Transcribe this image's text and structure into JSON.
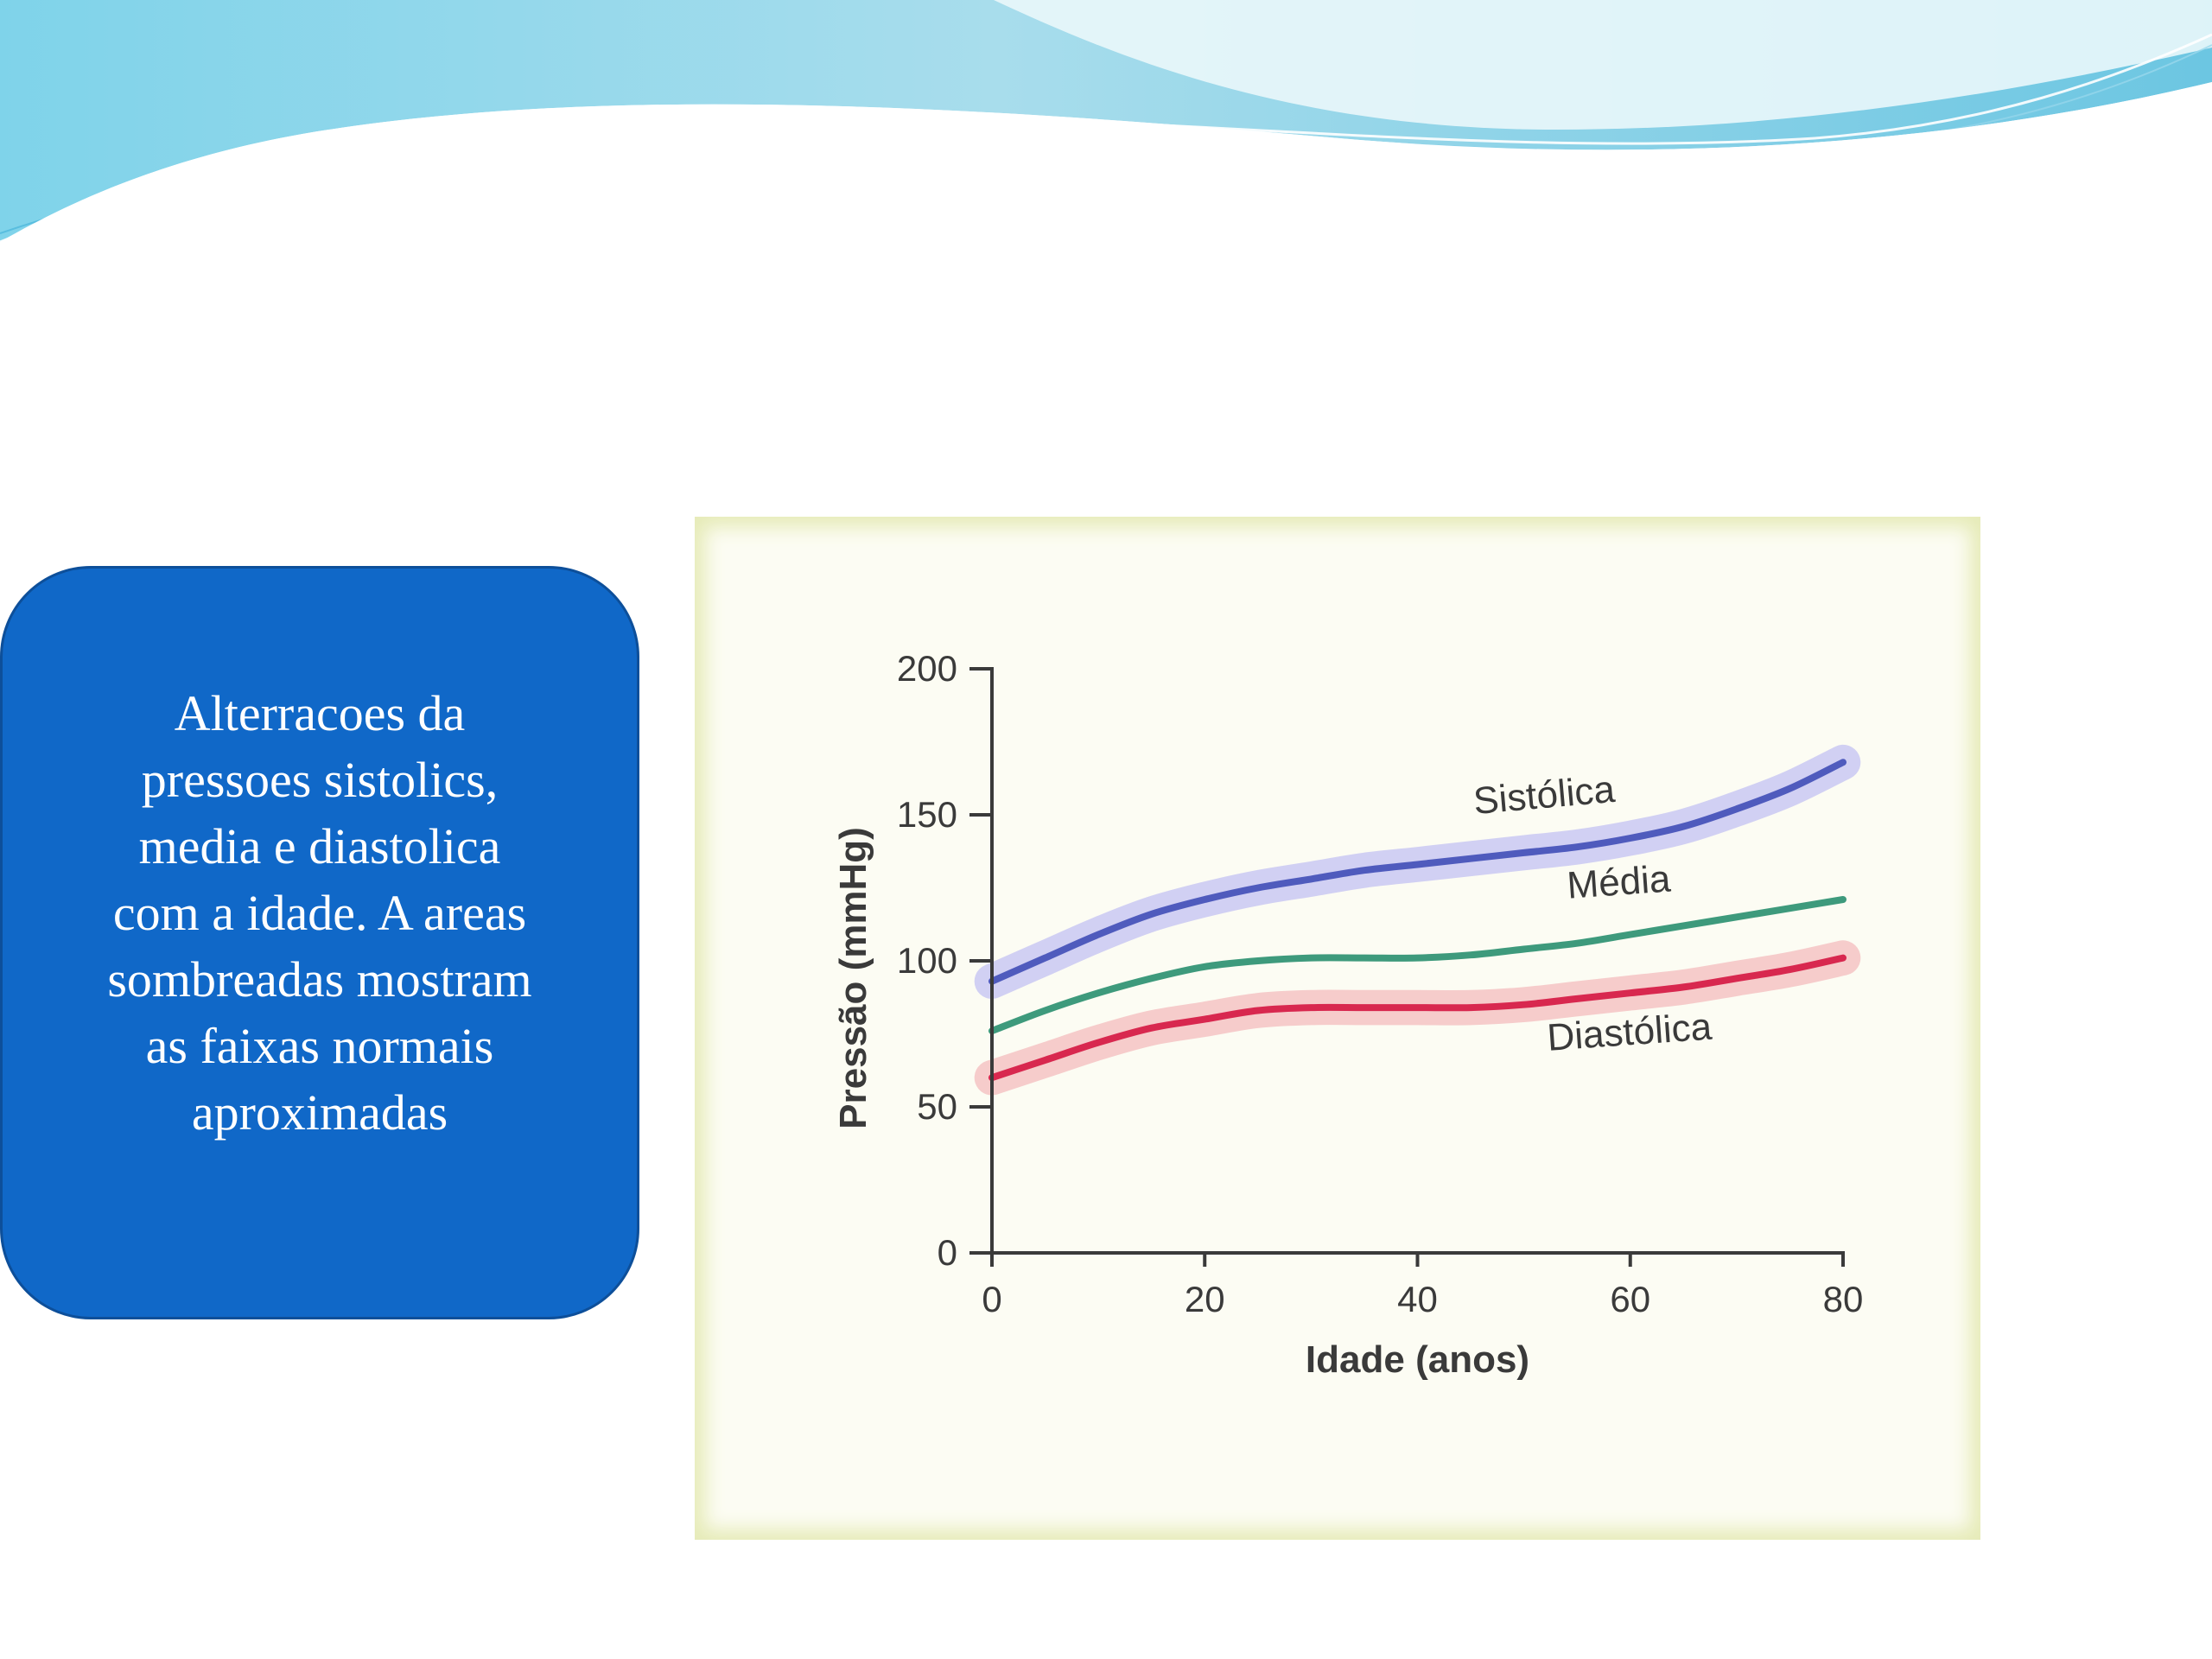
{
  "slide": {
    "description_text": "Alterracoes da\npressoes  sistolics,\nmedia e diastolica\ncom a idade. A areas\nsombreadas  mostram\nas  faixas normais\naproximadas"
  },
  "colors": {
    "text_box_fill": "#1068c8",
    "systolic": "#4f5bbd",
    "systolic_band": "#c9c8f2",
    "mean": "#3e9a7c",
    "diastolic": "#d8284f",
    "diastolic_band": "#f4c3c3",
    "chart_background": "#fcfcf3"
  },
  "chart_data": {
    "type": "line",
    "xlabel": "Idade (anos)",
    "ylabel": "Pressão (mmHg)",
    "xlim": [
      0,
      80
    ],
    "ylim": [
      0,
      200
    ],
    "xticks": [
      0,
      20,
      40,
      60,
      80
    ],
    "yticks": [
      0,
      50,
      100,
      150,
      200
    ],
    "x": [
      0,
      5,
      10,
      15,
      20,
      25,
      30,
      35,
      40,
      45,
      50,
      55,
      60,
      65,
      70,
      75,
      80
    ],
    "series": [
      {
        "name": "Sistólica",
        "color": "#4f5bbd",
        "band_color": "#c9c8f2",
        "values": [
          93,
          101,
          109,
          116,
          121,
          125,
          128,
          131,
          133,
          135,
          137,
          139,
          142,
          146,
          152,
          159,
          168
        ],
        "band_halfwidth": 6
      },
      {
        "name": "Média",
        "color": "#3e9a7c",
        "values": [
          76,
          83,
          89,
          94,
          98,
          100,
          101,
          101,
          101,
          102,
          104,
          106,
          109,
          112,
          115,
          118,
          121
        ]
      },
      {
        "name": "Diastólica",
        "color": "#d8284f",
        "band_color": "#f4c3c3",
        "values": [
          60,
          66,
          72,
          77,
          80,
          83,
          84,
          84,
          84,
          84,
          85,
          87,
          89,
          91,
          94,
          97,
          101
        ],
        "band_halfwidth": 6
      }
    ]
  }
}
